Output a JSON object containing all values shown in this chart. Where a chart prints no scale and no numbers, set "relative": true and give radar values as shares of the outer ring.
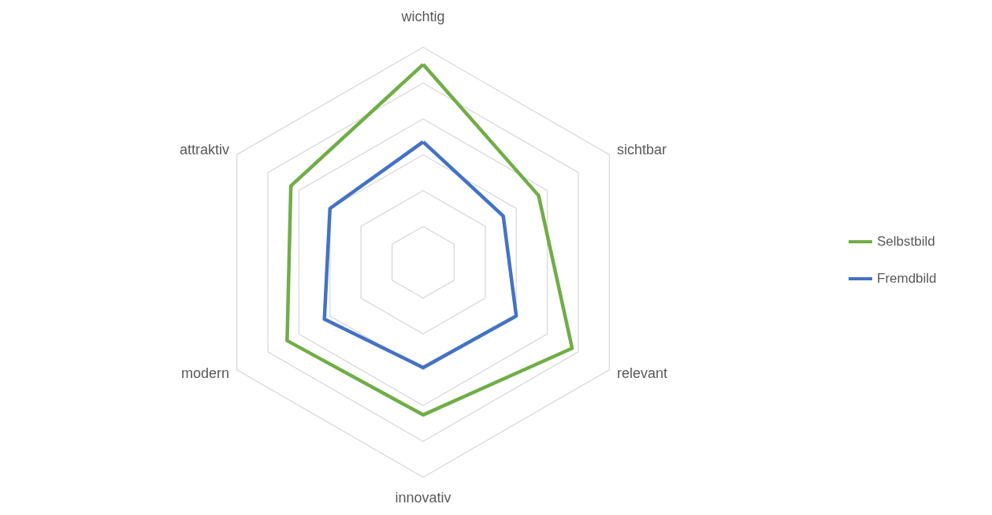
{
  "chart_data": {
    "type": "radar",
    "relative": true,
    "grid": true,
    "legend": "right",
    "marker": "none",
    "categories": [
      "wichtig",
      "sichtbar",
      "relevant",
      "innovativ",
      "modern",
      "attraktiv"
    ],
    "series": [
      {
        "name": "Selbstbild",
        "color": "#70ad47",
        "values": [
          0.92,
          0.62,
          0.8,
          0.71,
          0.73,
          0.71
        ]
      },
      {
        "name": "Fremdbild",
        "color": "#4472c4",
        "values": [
          0.56,
          0.43,
          0.5,
          0.49,
          0.53,
          0.5
        ]
      }
    ]
  }
}
